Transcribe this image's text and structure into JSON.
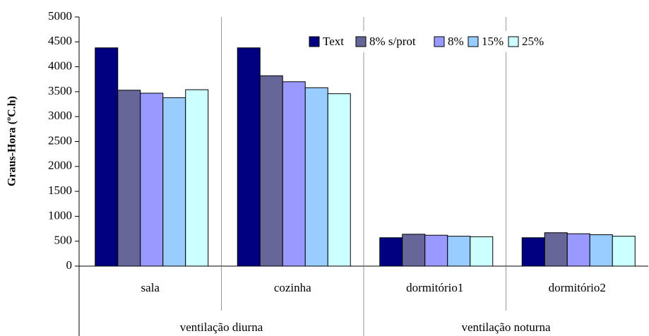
{
  "chart_data": {
    "type": "bar",
    "y_label": "Graus-Hora (ºC.h)",
    "groups": [
      {
        "name": "ventilação diurna",
        "categories": [
          "sala",
          "cozinha"
        ]
      },
      {
        "name": "ventilação noturna",
        "categories": [
          "dormitório1",
          "dormitório2"
        ]
      }
    ],
    "series": [
      {
        "name": "Text",
        "color": "#000080",
        "values": [
          4380,
          4380,
          570,
          570
        ]
      },
      {
        "name": "8% s/prot",
        "color": "#666699",
        "values": [
          3530,
          3820,
          640,
          670
        ]
      },
      {
        "name": "8%",
        "color": "#9999ff",
        "values": [
          3470,
          3700,
          620,
          650
        ]
      },
      {
        "name": "15%",
        "color": "#99ccff",
        "values": [
          3380,
          3580,
          600,
          630
        ]
      },
      {
        "name": "25%",
        "color": "#ccffff",
        "values": [
          3540,
          3460,
          590,
          600
        ]
      }
    ],
    "ylim": [
      0,
      5000
    ],
    "yticks": [
      0,
      500,
      1000,
      1500,
      2000,
      2500,
      3000,
      3500,
      4000,
      4500,
      5000
    ],
    "legend": "top-right"
  }
}
